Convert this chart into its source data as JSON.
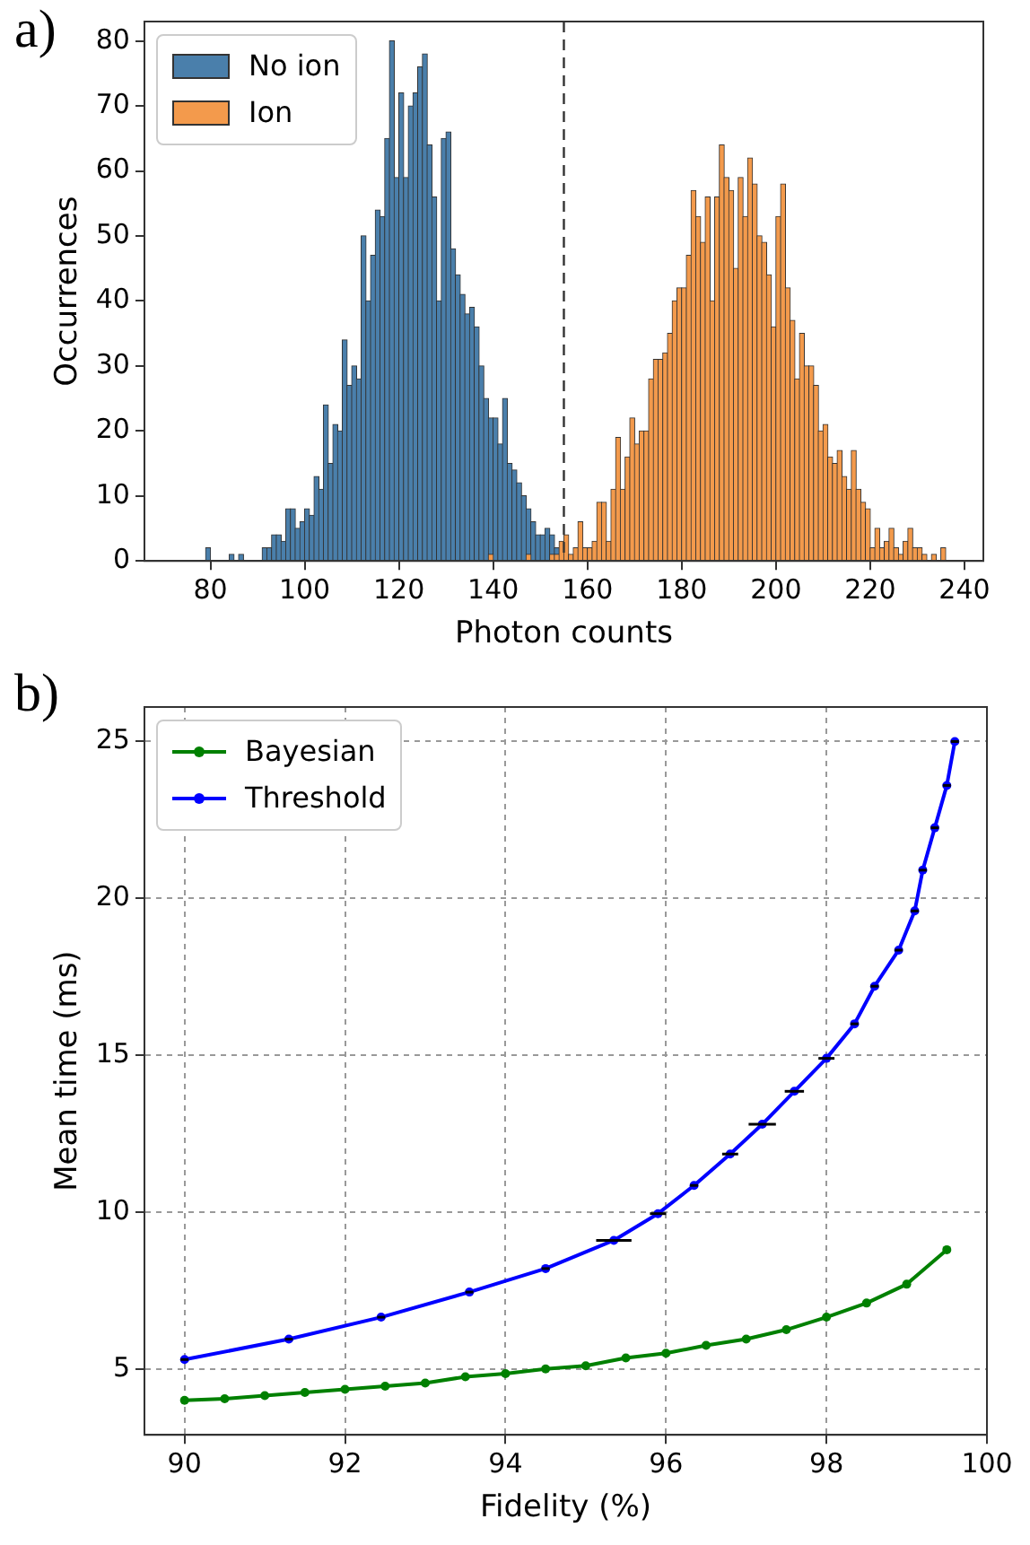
{
  "chart_data": [
    {
      "type": "histogram",
      "annotations": [
        "a)"
      ],
      "xlabel": "Photon counts",
      "ylabel": "Occurrences",
      "legend": "top left",
      "grid": false,
      "xlim": [
        66,
        244
      ],
      "xticks": [
        80,
        100,
        120,
        140,
        160,
        180,
        200,
        220,
        240
      ],
      "ylim": [
        0,
        83
      ],
      "yticks": [
        0,
        10,
        20,
        30,
        40,
        50,
        60,
        70,
        80
      ],
      "ref_lines": [
        {
          "axis": "x",
          "value": 155,
          "color": "#333333",
          "line_style": "dashed"
        }
      ],
      "bins": [
        78,
        79,
        80,
        81,
        82,
        83,
        84,
        85,
        86,
        87,
        88,
        89,
        90,
        91,
        92,
        93,
        94,
        95,
        96,
        97,
        98,
        99,
        100,
        101,
        102,
        103,
        104,
        105,
        106,
        107,
        108,
        109,
        110,
        111,
        112,
        113,
        114,
        115,
        116,
        117,
        118,
        119,
        120,
        121,
        122,
        123,
        124,
        125,
        126,
        127,
        128,
        129,
        130,
        131,
        132,
        133,
        134,
        135,
        136,
        137,
        138,
        139,
        140,
        141,
        142,
        143,
        144,
        145,
        146,
        147,
        148,
        149,
        150,
        151,
        152,
        153,
        154,
        155,
        156,
        157,
        158,
        159,
        160,
        161,
        162,
        163,
        164,
        165,
        166,
        167,
        168,
        169,
        170,
        171,
        172,
        173,
        174,
        175,
        176,
        177,
        178,
        179,
        180,
        181,
        182,
        183,
        184,
        185,
        186,
        187,
        188,
        189,
        190,
        191,
        192,
        193,
        194,
        195,
        196,
        197,
        198,
        199,
        200,
        201,
        202,
        203,
        204,
        205,
        206,
        207,
        208,
        209,
        210,
        211,
        212,
        213,
        214,
        215,
        216,
        217,
        218,
        219,
        220,
        221,
        222,
        223,
        224,
        225,
        226,
        227,
        228,
        229,
        230,
        231,
        232,
        233,
        234,
        235,
        236,
        237
      ],
      "series": [
        {
          "name": "No ion",
          "color": "#4a7fab",
          "values": [
            0,
            2,
            0,
            0,
            0,
            0,
            1,
            0,
            1,
            0,
            0,
            0,
            0,
            2,
            2,
            4,
            4,
            3,
            8,
            8,
            5,
            6,
            8,
            7,
            13,
            11,
            24,
            15,
            21,
            20,
            34,
            27,
            30,
            28,
            50,
            40,
            47,
            54,
            53,
            65,
            80,
            59,
            72,
            59,
            70,
            72,
            76,
            78,
            64,
            56,
            40,
            65,
            66,
            48,
            44,
            41,
            38,
            39,
            36,
            30,
            25,
            22,
            22,
            18,
            25,
            15,
            14,
            12,
            10,
            8,
            6,
            4,
            4,
            5,
            4,
            2,
            0,
            0,
            0,
            0,
            0,
            0,
            0,
            0,
            0,
            0,
            0,
            0,
            0,
            0,
            0,
            0,
            0,
            0,
            0,
            0,
            0,
            0,
            0,
            0,
            0,
            0,
            0,
            0,
            0,
            0,
            0,
            0,
            0,
            0,
            0,
            0,
            0,
            0,
            0,
            0,
            0,
            0,
            0,
            0,
            0,
            0,
            0,
            0,
            0,
            0,
            0,
            0,
            0,
            0,
            0,
            0,
            0,
            0,
            0,
            0,
            0,
            0,
            0,
            0,
            0,
            0,
            0,
            0,
            0,
            0,
            0,
            0,
            0,
            0,
            0,
            0,
            0,
            0,
            0,
            0,
            0,
            0,
            0
          ]
        },
        {
          "name": "Ion",
          "color": "#f39a4c",
          "values": [
            0,
            0,
            0,
            0,
            0,
            0,
            0,
            0,
            0,
            0,
            0,
            0,
            0,
            0,
            0,
            0,
            0,
            0,
            0,
            0,
            0,
            0,
            0,
            0,
            0,
            0,
            0,
            0,
            0,
            0,
            0,
            0,
            0,
            0,
            0,
            0,
            0,
            0,
            0,
            0,
            0,
            0,
            0,
            0,
            0,
            0,
            0,
            0,
            0,
            0,
            0,
            0,
            0,
            0,
            0,
            0,
            0,
            0,
            0,
            0,
            0,
            1,
            0,
            0,
            0,
            0,
            0,
            0,
            0,
            1,
            0,
            0,
            0,
            0,
            1,
            1,
            3,
            4,
            1,
            2,
            6,
            2,
            2,
            3,
            9,
            9,
            3,
            11,
            19,
            11,
            16,
            22,
            18,
            20,
            20,
            28,
            31,
            31,
            32,
            35,
            40,
            42,
            42,
            47,
            57,
            53,
            49,
            56,
            40,
            56,
            64,
            59,
            57,
            45,
            59,
            53,
            62,
            58,
            50,
            49,
            44,
            36,
            53,
            58,
            42,
            37,
            28,
            35,
            30,
            30,
            27,
            20,
            21,
            16,
            15,
            17,
            13,
            11,
            17,
            11,
            9,
            8,
            2,
            5,
            2,
            3,
            5,
            2,
            1,
            3,
            5,
            2,
            2,
            1,
            0,
            1,
            0,
            2,
            0
          ]
        }
      ]
    },
    {
      "type": "line",
      "annotations": [
        "b)"
      ],
      "xlabel": "Fidelity (%)",
      "ylabel": "Mean time (ms)",
      "legend": "top left",
      "grid": true,
      "marker": "circle",
      "line_style": "solid",
      "xlim": [
        89.5,
        100
      ],
      "xticks": [
        90,
        92,
        94,
        96,
        98,
        100
      ],
      "ylim": [
        2.9,
        26.1
      ],
      "yticks": [
        5,
        10,
        15,
        20,
        25
      ],
      "series": [
        {
          "name": "Bayesian",
          "color": "#008000",
          "x": [
            90,
            90.5,
            91,
            91.5,
            92,
            92.5,
            93,
            93.5,
            94,
            94.5,
            95,
            95.5,
            96,
            96.5,
            97,
            97.5,
            98,
            98.5,
            99,
            99.5
          ],
          "values": [
            4.0,
            4.05,
            4.15,
            4.25,
            4.35,
            4.45,
            4.55,
            4.75,
            4.85,
            5.0,
            5.1,
            5.35,
            5.5,
            5.75,
            5.95,
            6.25,
            6.65,
            7.1,
            7.7,
            8.8
          ]
        },
        {
          "name": "Threshold",
          "color": "#0000ff",
          "x": [
            90,
            91.3,
            92.45,
            93.55,
            94.5,
            95.35,
            95.9,
            96.35,
            96.8,
            97.2,
            97.6,
            98.0,
            98.35,
            98.6,
            98.9,
            99.1,
            99.2,
            99.35,
            99.5,
            99.6
          ],
          "values": [
            5.3,
            5.95,
            6.65,
            7.45,
            8.2,
            9.1,
            9.95,
            10.85,
            11.85,
            12.8,
            13.85,
            14.9,
            16.0,
            17.2,
            18.35,
            19.6,
            20.9,
            22.25,
            23.6,
            25.0
          ],
          "xerrors": [
            0.05,
            0.05,
            0.05,
            0.05,
            0.05,
            0.22,
            0.1,
            0.05,
            0.1,
            0.17,
            0.12,
            0.1,
            0.05,
            0.05,
            0.05,
            0.05,
            0.05,
            0.05,
            0.05,
            0.05
          ]
        }
      ]
    }
  ]
}
